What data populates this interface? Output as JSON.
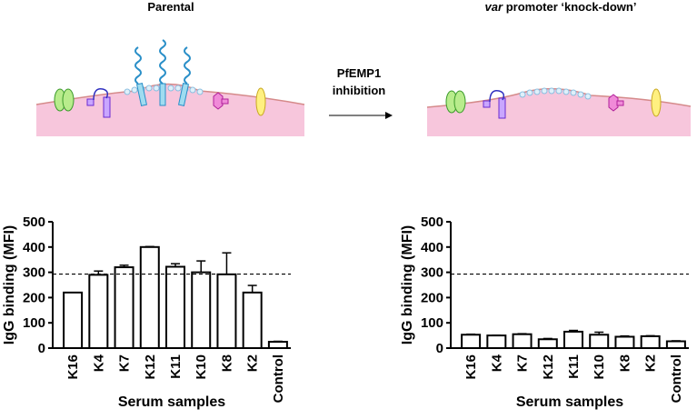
{
  "diagram": {
    "left_title": "Parental",
    "right_title_italic": "var",
    "right_title_rest": "promoter ‘knock-down’",
    "arrow_label": [
      "PfEMP1",
      "inhibition"
    ]
  },
  "chart_data": [
    {
      "type": "bar",
      "ylabel": "IgG binding (MFI)",
      "xlabel": "Serum samples",
      "categories": [
        "K16",
        "K4",
        "K7",
        "K12",
        "K11",
        "K10",
        "K8",
        "K2",
        "Control"
      ],
      "values": [
        220,
        290,
        320,
        400,
        322,
        300,
        292,
        220,
        25
      ],
      "errors": [
        0,
        15,
        8,
        2,
        12,
        45,
        85,
        28,
        2
      ],
      "ylim": [
        0,
        500
      ],
      "yticks": [
        0,
        100,
        200,
        300,
        400,
        500
      ],
      "reference_line": 293,
      "color": "#ffffff"
    },
    {
      "type": "bar",
      "ylabel": "IgG binding (MFI)",
      "xlabel": "Serum samples",
      "categories": [
        "K16",
        "K4",
        "K7",
        "K12",
        "K11",
        "K10",
        "K8",
        "K2",
        "Control"
      ],
      "values": [
        53,
        50,
        55,
        35,
        65,
        53,
        45,
        47,
        27
      ],
      "errors": [
        2,
        1,
        2,
        3,
        5,
        10,
        3,
        2,
        2
      ],
      "ylim": [
        0,
        500
      ],
      "yticks": [
        0,
        100,
        200,
        300,
        400,
        500
      ],
      "reference_line": 293,
      "color": "#ffffff"
    }
  ]
}
